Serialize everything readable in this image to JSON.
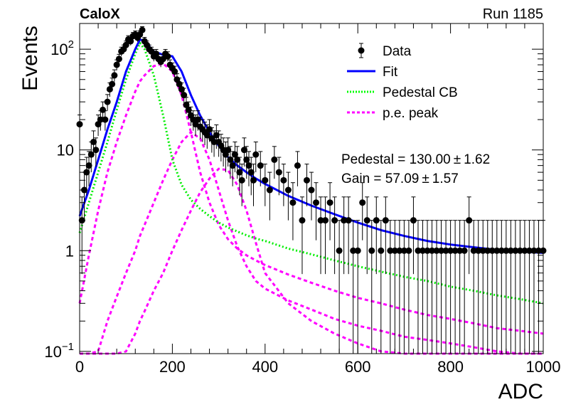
{
  "header": {
    "left": "CaloX",
    "right": "Run 1185"
  },
  "chart_data": {
    "type": "scatter",
    "xlabel": "ADC",
    "ylabel": "Events",
    "xlim": [
      0,
      1000
    ],
    "ylim": [
      0.095,
      180
    ],
    "yscale": "log",
    "x_ticks": [
      {
        "value": 0,
        "label": "0"
      },
      {
        "value": 200,
        "label": "200"
      },
      {
        "value": 400,
        "label": "400"
      },
      {
        "value": 600,
        "label": "600"
      },
      {
        "value": 800,
        "label": "800"
      },
      {
        "value": 1000,
        "label": "1000"
      }
    ],
    "y_ticks": [
      {
        "value": 0.1,
        "label": "10",
        "sup": "−1"
      },
      {
        "value": 1,
        "label": "1",
        "sup": ""
      },
      {
        "value": 10,
        "label": "10",
        "sup": ""
      },
      {
        "value": 100,
        "label": "10",
        "sup": "2"
      }
    ],
    "legend": {
      "position": "top-right",
      "entries": [
        {
          "label": "Data",
          "style": "marker",
          "color": "#000000"
        },
        {
          "label": "Fit",
          "style": "solid",
          "color": "#0000ff"
        },
        {
          "label": "Pedestal CB",
          "style": "dotted",
          "color": "#00ff00"
        },
        {
          "label": "p.e. peak",
          "style": "dashed",
          "color": "#ff00ff"
        }
      ]
    },
    "stats": [
      {
        "label": "Pedestal = 130.00",
        "pm": "±",
        "err": "1.62"
      },
      {
        "label": "Gain = 57.09",
        "pm": "±",
        "err": "1.57"
      }
    ],
    "data_points": {
      "x": [
        0,
        5,
        10,
        15,
        20,
        25,
        30,
        35,
        40,
        45,
        50,
        55,
        60,
        65,
        70,
        75,
        80,
        85,
        90,
        95,
        100,
        105,
        110,
        115,
        120,
        125,
        130,
        135,
        140,
        145,
        150,
        155,
        160,
        165,
        170,
        175,
        180,
        185,
        190,
        195,
        200,
        205,
        210,
        215,
        220,
        225,
        230,
        235,
        240,
        245,
        250,
        255,
        260,
        265,
        270,
        275,
        280,
        285,
        290,
        295,
        300,
        305,
        310,
        315,
        320,
        325,
        330,
        335,
        340,
        345,
        350,
        355,
        360,
        365,
        370,
        375,
        380,
        390,
        400,
        410,
        420,
        430,
        440,
        450,
        460,
        470,
        480,
        490,
        500,
        510,
        520,
        530,
        540,
        550,
        560,
        570,
        580,
        590,
        600,
        610,
        620,
        630,
        640,
        650,
        660,
        670,
        680,
        690,
        700,
        710,
        720,
        730,
        740,
        750,
        760,
        770,
        780,
        790,
        800,
        810,
        820,
        830,
        840,
        850,
        860,
        870,
        880,
        890,
        900,
        910,
        920,
        930,
        940,
        950,
        960,
        970,
        980,
        990,
        1000
      ],
      "y": [
        18,
        2,
        4,
        6,
        7,
        9,
        12,
        10,
        18,
        20,
        25,
        20,
        30,
        40,
        45,
        55,
        70,
        80,
        95,
        100,
        110,
        125,
        120,
        135,
        140,
        130,
        140,
        155,
        120,
        110,
        100,
        95,
        85,
        90,
        80,
        75,
        80,
        90,
        85,
        70,
        65,
        60,
        50,
        45,
        40,
        35,
        28,
        25,
        22,
        20,
        18,
        20,
        17,
        16,
        15,
        14,
        16,
        13,
        12,
        14,
        12,
        11,
        10,
        9,
        10,
        8,
        7,
        9,
        8,
        6,
        5,
        10,
        8,
        7,
        6,
        5,
        9,
        7,
        5,
        4,
        8,
        6,
        5,
        4,
        3,
        7,
        2,
        5,
        4,
        3,
        2,
        2,
        3,
        2,
        1,
        2,
        2,
        1,
        1,
        3,
        2,
        1,
        2,
        1,
        2,
        1,
        1,
        1,
        1,
        1,
        2,
        1,
        1,
        1,
        1,
        1,
        1,
        1,
        1,
        1,
        1,
        1,
        2,
        1,
        1,
        1,
        1,
        1,
        1,
        1,
        1,
        1,
        1,
        1,
        1,
        1,
        1,
        1,
        1
      ]
    },
    "curves": {
      "x": [
        0,
        20,
        40,
        60,
        80,
        100,
        120,
        130,
        140,
        160,
        180,
        200,
        220,
        240,
        260,
        280,
        300,
        320,
        340,
        360,
        380,
        400,
        450,
        500,
        550,
        600,
        650,
        700,
        750,
        800,
        850,
        900,
        950,
        1000
      ],
      "fit": [
        2.2,
        4,
        8,
        16,
        30,
        60,
        100,
        125,
        120,
        95,
        88,
        85,
        60,
        35,
        22,
        15,
        11,
        8.5,
        7,
        6,
        5.2,
        4.6,
        3.5,
        2.8,
        2.3,
        1.9,
        1.6,
        1.4,
        1.25,
        1.15,
        1.08,
        1.02,
        0.98,
        0.95
      ],
      "pedestal_cb": [
        1.5,
        3,
        6,
        12,
        25,
        50,
        90,
        115,
        100,
        55,
        22,
        8,
        4.5,
        3.2,
        2.6,
        2.2,
        1.9,
        1.7,
        1.55,
        1.42,
        1.32,
        1.25,
        1.05,
        0.92,
        0.8,
        0.7,
        0.62,
        0.55,
        0.5,
        0.44,
        0.4,
        0.36,
        0.33,
        0.3
      ],
      "pe_peak_1": [
        0.3,
        0.9,
        2.5,
        6,
        12,
        22,
        38,
        48,
        55,
        68,
        72,
        60,
        35,
        15,
        6,
        3,
        1.8,
        1.3,
        1.05,
        0.9,
        0.8,
        0.72,
        0.58,
        0.48,
        0.4,
        0.34,
        0.3,
        0.26,
        0.23,
        0.21,
        0.19,
        0.17,
        0.16,
        0.15
      ],
      "pe_peak_2": [
        0.02,
        0.05,
        0.1,
        0.2,
        0.35,
        0.6,
        1,
        1.4,
        1.8,
        3,
        5,
        8,
        12,
        15,
        13,
        8,
        4,
        2,
        1.1,
        0.7,
        0.5,
        0.42,
        0.32,
        0.26,
        0.21,
        0.18,
        0.16,
        0.14,
        0.13,
        0.12,
        0.11,
        0.1,
        0.095,
        0.09
      ],
      "pe_peak_3": [
        0.005,
        0.01,
        0.02,
        0.04,
        0.07,
        0.1,
        0.15,
        0.2,
        0.25,
        0.4,
        0.6,
        1,
        1.6,
        2.5,
        3.8,
        5.2,
        6.5,
        6.3,
        4.5,
        2.5,
        1.2,
        0.6,
        0.3,
        0.2,
        0.15,
        0.12,
        0.1,
        0.09,
        0.08,
        0.07,
        0.065,
        0.06,
        0.055,
        0.05
      ]
    }
  }
}
